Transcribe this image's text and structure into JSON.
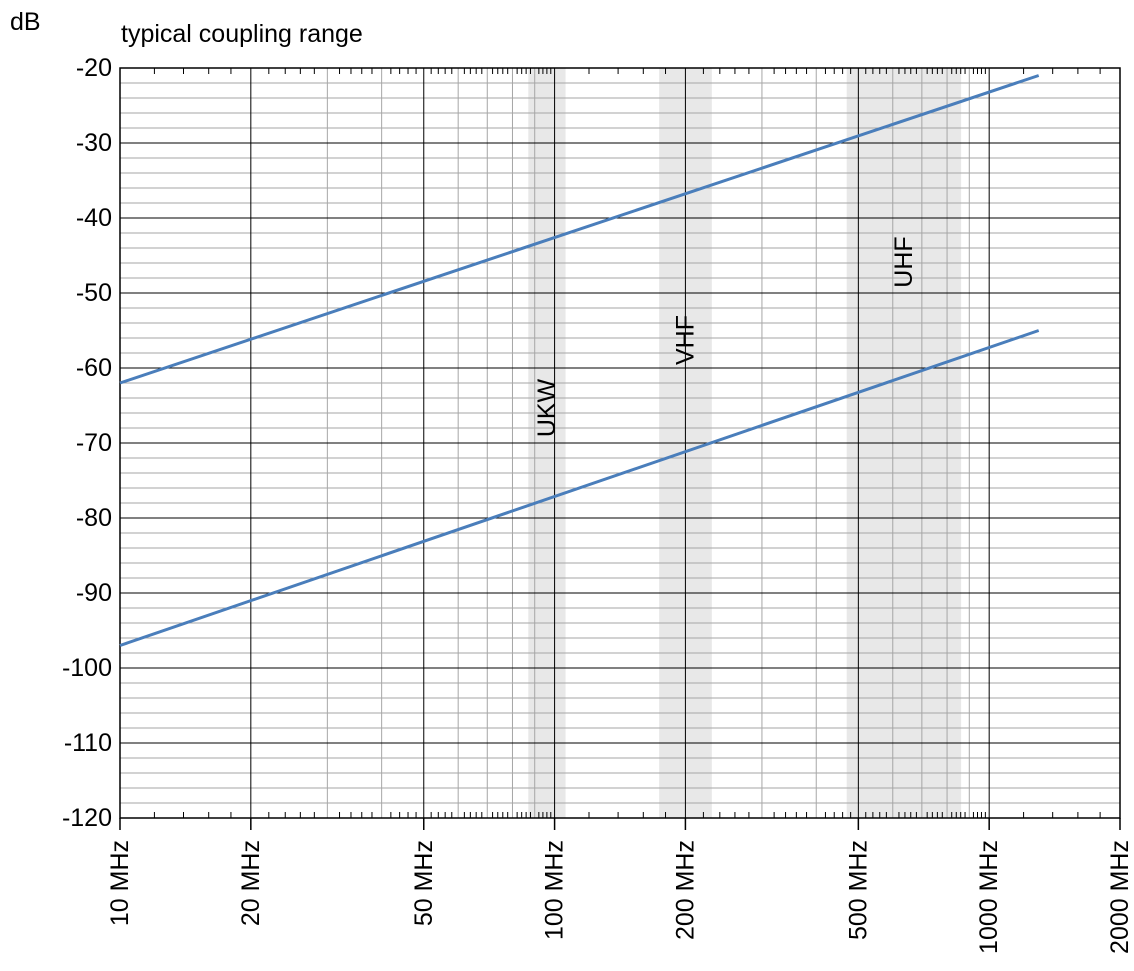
{
  "chart_data": {
    "type": "line",
    "title": "typical coupling range",
    "ylabel": "dB",
    "xlabel": "",
    "x_scale": "log",
    "xlim": [
      10,
      2000
    ],
    "ylim": [
      -120,
      -20
    ],
    "grid": true,
    "x_ticks": [
      {
        "value": 10,
        "label": "10 MHz"
      },
      {
        "value": 20,
        "label": "20 MHz"
      },
      {
        "value": 50,
        "label": "50 MHz"
      },
      {
        "value": 100,
        "label": "100 MHz"
      },
      {
        "value": 200,
        "label": "200 MHz"
      },
      {
        "value": 500,
        "label": "500 MHz"
      },
      {
        "value": 1000,
        "label": "1000 MHz"
      },
      {
        "value": 2000,
        "label": "2000 MHz"
      }
    ],
    "y_ticks": [
      {
        "value": -20,
        "label": "-20"
      },
      {
        "value": -30,
        "label": "-30"
      },
      {
        "value": -40,
        "label": "-40"
      },
      {
        "value": -50,
        "label": "-50"
      },
      {
        "value": -60,
        "label": "-60"
      },
      {
        "value": -70,
        "label": "-70"
      },
      {
        "value": -80,
        "label": "-80"
      },
      {
        "value": -90,
        "label": "-90"
      },
      {
        "value": -100,
        "label": "-100"
      },
      {
        "value": -110,
        "label": "-110"
      },
      {
        "value": -120,
        "label": "-120"
      }
    ],
    "series": [
      {
        "x": [
          10,
          1300
        ],
        "y": [
          -62,
          -21
        ],
        "color": "#4a7ebb"
      },
      {
        "x": [
          10,
          1300
        ],
        "y": [
          -97,
          -55
        ],
        "color": "#4a7ebb"
      }
    ],
    "bands": [
      {
        "label": "UKW",
        "x_start": 87,
        "x_end": 106
      },
      {
        "label": "VHF",
        "x_start": 174,
        "x_end": 230
      },
      {
        "label": "UHF",
        "x_start": 470,
        "x_end": 862
      }
    ],
    "band_color": "#e8e8e8",
    "grid_major_color": "#000000",
    "grid_minor_color": "#a6a6a6"
  }
}
